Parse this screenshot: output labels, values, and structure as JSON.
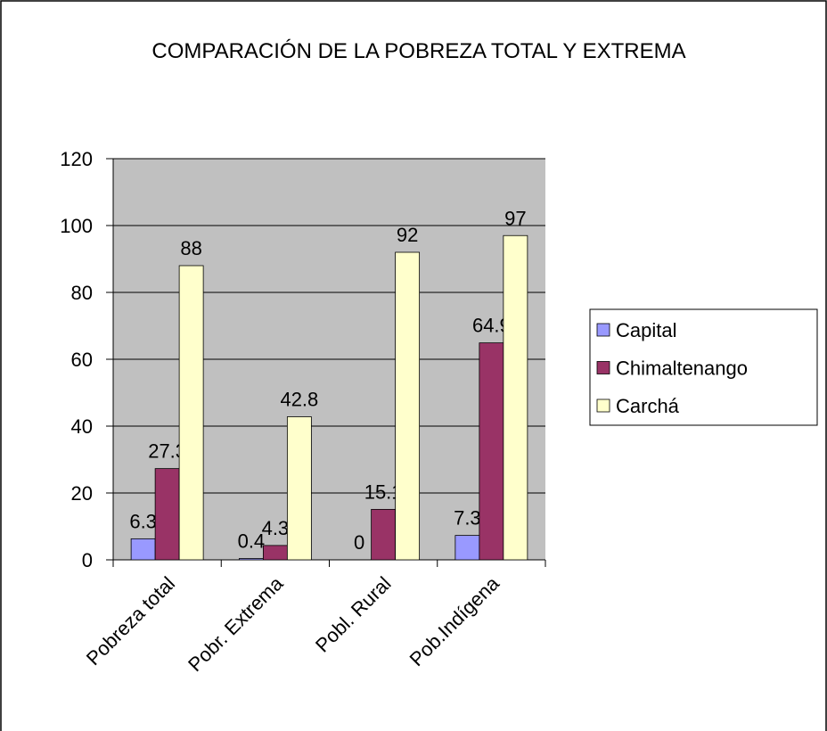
{
  "chart_data": {
    "type": "bar",
    "title": "COMPARACIÓN DE LA POBREZA TOTAL Y EXTREMA",
    "categories": [
      "Pobreza total",
      "Pobr. Extrema",
      "Pobl. Rural",
      "Pob.Indígena"
    ],
    "series": [
      {
        "name": "Capital",
        "color": "#9999ff",
        "values": [
          6.3,
          0.4,
          0,
          7.3
        ]
      },
      {
        "name": "Chimaltenango",
        "color": "#993366",
        "values": [
          27.3,
          4.3,
          15.1,
          64.9
        ]
      },
      {
        "name": "Carchá",
        "color": "#ffffcc",
        "values": [
          88,
          42.8,
          92,
          97
        ]
      }
    ],
    "ylim": [
      0,
      120
    ],
    "yticks": [
      0,
      20,
      40,
      60,
      80,
      100,
      120
    ],
    "grid": true,
    "legend": "right"
  }
}
